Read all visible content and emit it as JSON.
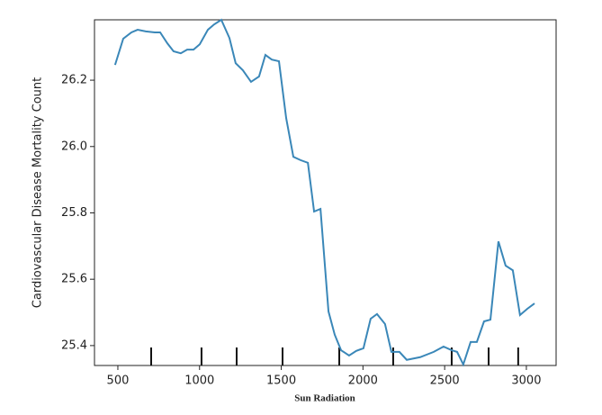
{
  "chart_data": {
    "type": "line",
    "xlabel": "Sun Radiation",
    "ylabel": "Cardiovascular Disease Mortality Count",
    "x": [
      483,
      533,
      583,
      621,
      671,
      726,
      759,
      803,
      841,
      885,
      924,
      963,
      1001,
      1051,
      1089,
      1133,
      1183,
      1221,
      1265,
      1315,
      1364,
      1403,
      1442,
      1486,
      1530,
      1574,
      1618,
      1663,
      1701,
      1740,
      1789,
      1827,
      1866,
      1915,
      1959,
      2003,
      2047,
      2086,
      2135,
      2174,
      2223,
      2268,
      2350,
      2433,
      2493,
      2543,
      2576,
      2614,
      2659,
      2697,
      2741,
      2780,
      2829,
      2873,
      2917,
      2961,
      3006,
      3050
    ],
    "series": [
      {
        "color": "#3a87b8",
        "values": [
          26.246,
          26.325,
          26.344,
          26.352,
          26.347,
          26.344,
          26.344,
          26.311,
          26.287,
          26.281,
          26.292,
          26.292,
          26.308,
          26.352,
          26.368,
          26.382,
          26.327,
          26.251,
          26.23,
          26.195,
          26.211,
          26.276,
          26.262,
          26.257,
          26.086,
          25.969,
          25.959,
          25.951,
          25.804,
          25.812,
          25.503,
          25.433,
          25.386,
          25.37,
          25.384,
          25.392,
          25.481,
          25.495,
          25.465,
          25.381,
          25.381,
          25.357,
          25.365,
          25.381,
          25.397,
          25.386,
          25.381,
          25.343,
          25.411,
          25.411,
          25.473,
          25.478,
          25.714,
          25.641,
          25.627,
          25.492,
          25.511,
          25.527
        ]
      }
    ],
    "deciles": [
      704,
      1012,
      1227,
      1508,
      1855,
      2185,
      2543,
      2769,
      2950
    ],
    "xlim": [
      357,
      3182
    ],
    "ylim": [
      25.34,
      26.382
    ],
    "xticks": [
      500,
      1000,
      1500,
      2000,
      2500,
      3000
    ],
    "yticks": [
      25.4,
      25.6,
      25.8,
      {
        "value": 26,
        "label": "26.0"
      },
      26.2
    ]
  }
}
